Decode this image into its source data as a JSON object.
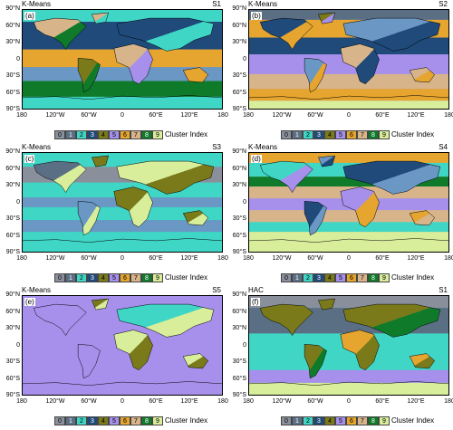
{
  "cluster_colors": [
    "#8a8f9c",
    "#5a6f84",
    "#3fd6c6",
    "#1f4a7a",
    "#7a7a1a",
    "#a690ec",
    "#e5a52e",
    "#d8b48a",
    "#0f7b2a",
    "#d8ee9a"
  ],
  "colorbar": {
    "labels": [
      "0",
      "1",
      "2",
      "3",
      "4",
      "5",
      "6",
      "7",
      "8",
      "9"
    ],
    "title": "Cluster Index"
  },
  "y_ticks": [
    "90°N",
    "60°N",
    "30°N",
    "0",
    "30°S",
    "60°S",
    "90°S"
  ],
  "x_ticks": [
    "180",
    "120°W",
    "60°W",
    "0",
    "60°E",
    "120°E",
    "180"
  ],
  "panels": [
    {
      "method": "K-Means",
      "scenario": "S1",
      "letter": "(a)",
      "bg": "#6a97c4",
      "bands": [
        [
          0,
          "#3fd6c6"
        ],
        [
          12,
          "#1f4a7a"
        ],
        [
          40,
          "#e5a52e"
        ],
        [
          58,
          "#6a97c4"
        ],
        [
          72,
          "#0f7b2a"
        ],
        [
          88,
          "#3fd6c6"
        ]
      ],
      "land": [
        [
          "#d8b48a",
          "#0f7b2a"
        ],
        [
          "#7a7a1a",
          "#0f7b2a"
        ],
        [
          "#d8b48a",
          "#a690ec"
        ],
        [
          "#1f4a7a",
          "#3fd6c6"
        ],
        [
          "#e5a52e",
          "#e5a52e"
        ],
        [
          "#d8b48a",
          "#3fd6c6"
        ]
      ]
    },
    {
      "method": "K-Means",
      "scenario": "S2",
      "letter": "(b)",
      "bg": "#a690ec",
      "bands": [
        [
          0,
          "#5a6f84"
        ],
        [
          10,
          "#e5a52e"
        ],
        [
          28,
          "#1f4a7a"
        ],
        [
          45,
          "#a690ec"
        ],
        [
          65,
          "#d8b48a"
        ],
        [
          80,
          "#e5a52e"
        ],
        [
          92,
          "#d8ee9a"
        ]
      ],
      "land": [
        [
          "#1f4a7a",
          "#e5a52e"
        ],
        [
          "#6a97c4",
          "#e5a52e"
        ],
        [
          "#d8b48a",
          "#1f4a7a"
        ],
        [
          "#6a97c4",
          "#1f4a7a"
        ],
        [
          "#d8b48a",
          "#e5a52e"
        ],
        [
          "#7a7a1a",
          "#a690ec"
        ]
      ]
    },
    {
      "method": "K-Means",
      "scenario": "S3",
      "letter": "(c)",
      "bg": "#3fd6c6",
      "bands": [
        [
          0,
          "#3fd6c6"
        ],
        [
          14,
          "#8a8f9c"
        ],
        [
          30,
          "#3fd6c6"
        ],
        [
          45,
          "#6a97c4"
        ],
        [
          55,
          "#3fd6c6"
        ],
        [
          68,
          "#6a97c4"
        ],
        [
          80,
          "#3fd6c6"
        ],
        [
          92,
          "#3fd6c6"
        ]
      ],
      "land": [
        [
          "#5a6f84",
          "#d8ee9a"
        ],
        [
          "#6a97c4",
          "#d8ee9a"
        ],
        [
          "#7a7a1a",
          "#d8ee9a"
        ],
        [
          "#d8ee9a",
          "#7a7a1a"
        ],
        [
          "#7a7a1a",
          "#d8ee9a"
        ],
        [
          "#7a7a1a",
          "#7a7a1a"
        ]
      ]
    },
    {
      "method": "K-Means",
      "scenario": "S4",
      "letter": "(d)",
      "bg": "#d8b48a",
      "bands": [
        [
          0,
          "#e5a52e"
        ],
        [
          10,
          "#3fd6c6"
        ],
        [
          24,
          "#0f7b2a"
        ],
        [
          34,
          "#d8b48a"
        ],
        [
          46,
          "#a690ec"
        ],
        [
          58,
          "#d8b48a"
        ],
        [
          70,
          "#3fd6c6"
        ],
        [
          80,
          "#d8ee9a"
        ]
      ],
      "land": [
        [
          "#3fd6c6",
          "#a690ec"
        ],
        [
          "#1f4a7a",
          "#6a97c4"
        ],
        [
          "#a690ec",
          "#e5a52e"
        ],
        [
          "#1f4a7a",
          "#6a97c4"
        ],
        [
          "#e5a52e",
          "#d8b48a"
        ],
        [
          "#6a97c4",
          "#1f4a7a"
        ]
      ]
    },
    {
      "method": "K-Means",
      "scenario": "S5",
      "letter": "(e)",
      "bg": "#a690ec",
      "bands": [
        [
          0,
          "#a690ec"
        ],
        [
          100,
          "#a690ec"
        ]
      ],
      "land": [
        [
          "#a690ec",
          "#a690ec"
        ],
        [
          "#a690ec",
          "#a690ec"
        ],
        [
          "#d8ee9a",
          "#7a7a1a"
        ],
        [
          "#3fd6c6",
          "#d8ee9a"
        ],
        [
          "#d8ee9a",
          "#7a7a1a"
        ],
        [
          "#7a7a1a",
          "#d8ee9a"
        ]
      ]
    },
    {
      "method": "HAC",
      "scenario": "S1",
      "letter": "(f)",
      "bg": "#3fd6c6",
      "bands": [
        [
          0,
          "#8a8f9c"
        ],
        [
          12,
          "#5a6f84"
        ],
        [
          38,
          "#3fd6c6"
        ],
        [
          75,
          "#a690ec"
        ],
        [
          88,
          "#d8ee9a"
        ]
      ],
      "land": [
        [
          "#7a7a1a",
          "#7a7a1a"
        ],
        [
          "#7a7a1a",
          "#0f7b2a"
        ],
        [
          "#e5a52e",
          "#7a7a1a"
        ],
        [
          "#7a7a1a",
          "#0f7b2a"
        ],
        [
          "#e5a52e",
          "#7a7a1a"
        ],
        [
          "#7a7a1a",
          "#7a7a1a"
        ]
      ]
    }
  ]
}
